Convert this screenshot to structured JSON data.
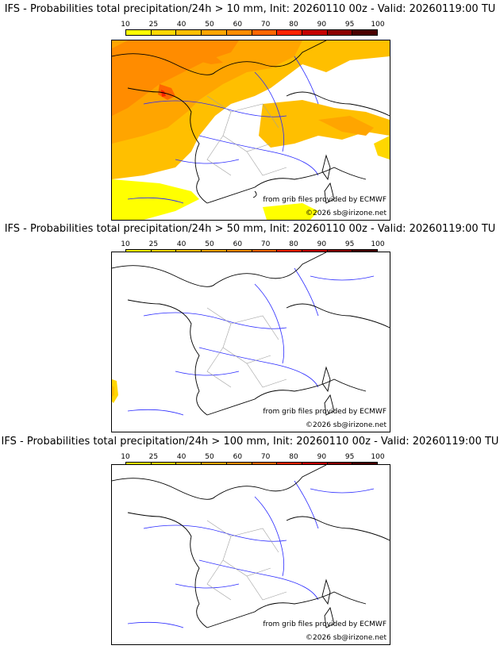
{
  "colors": {
    "c10": "#ffff00",
    "c25": "#ffd700",
    "c40": "#ffbf00",
    "c50": "#ffa500",
    "c60": "#ff8c00",
    "c70": "#ff6600",
    "c80": "#ff2200",
    "c90": "#c40000",
    "c95": "#8b0000",
    "c100": "#4a0000",
    "river": "#2a2aff",
    "border": "#a0a0a0",
    "coast": "#000000"
  },
  "scale_labels": [
    "10",
    "25",
    "40",
    "50",
    "60",
    "70",
    "80",
    "90",
    "95",
    "100"
  ],
  "credits": {
    "source": "from grib files provided by ECMWF",
    "author": "©2026 sb@irizone.net"
  },
  "panels": [
    {
      "title": "IFS - Probabilities total precipitation/24h > 10 mm, Init: 20260110 00z - Valid: 20260119:00 TU",
      "threshold": "10"
    },
    {
      "title": "IFS - Probabilities total precipitation/24h > 50 mm, Init: 20260110 00z - Valid: 20260119:00 TU",
      "threshold": "50"
    },
    {
      "title": "IFS - Probabilities total precipitation/24h > 100 mm, Init: 20260110 00z - Valid: 20260119:00 TU",
      "threshold": "100"
    }
  ]
}
